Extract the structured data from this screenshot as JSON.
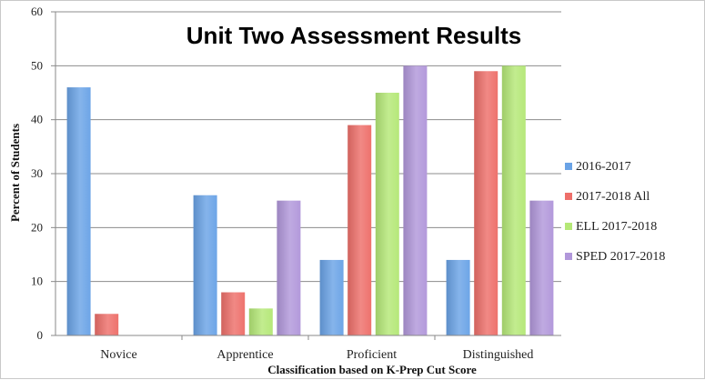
{
  "chart_data": {
    "type": "bar",
    "title": "Unit Two Assessment Results",
    "xlabel": "Classification based on K-Prep Cut Score",
    "ylabel": "Percent of Students",
    "ylim": [
      0,
      60
    ],
    "yticks": [
      0,
      10,
      20,
      30,
      40,
      50,
      60
    ],
    "grid": true,
    "legend_position": "right",
    "categories": [
      "Novice",
      "Apprentice",
      "Proficient",
      "Distinguished"
    ],
    "series": [
      {
        "name": "2016-2017",
        "color": "#6aa3e6",
        "values": [
          46,
          26,
          14,
          14
        ]
      },
      {
        "name": "2017-2018 All",
        "color": "#ee6f6a",
        "values": [
          4,
          8,
          39,
          49
        ]
      },
      {
        "name": "ELL 2017-2018",
        "color": "#b5e877",
        "values": [
          0,
          5,
          45,
          50
        ]
      },
      {
        "name": "SPED 2017-2018",
        "color": "#b197da",
        "values": [
          0,
          25,
          50,
          25
        ]
      }
    ]
  }
}
